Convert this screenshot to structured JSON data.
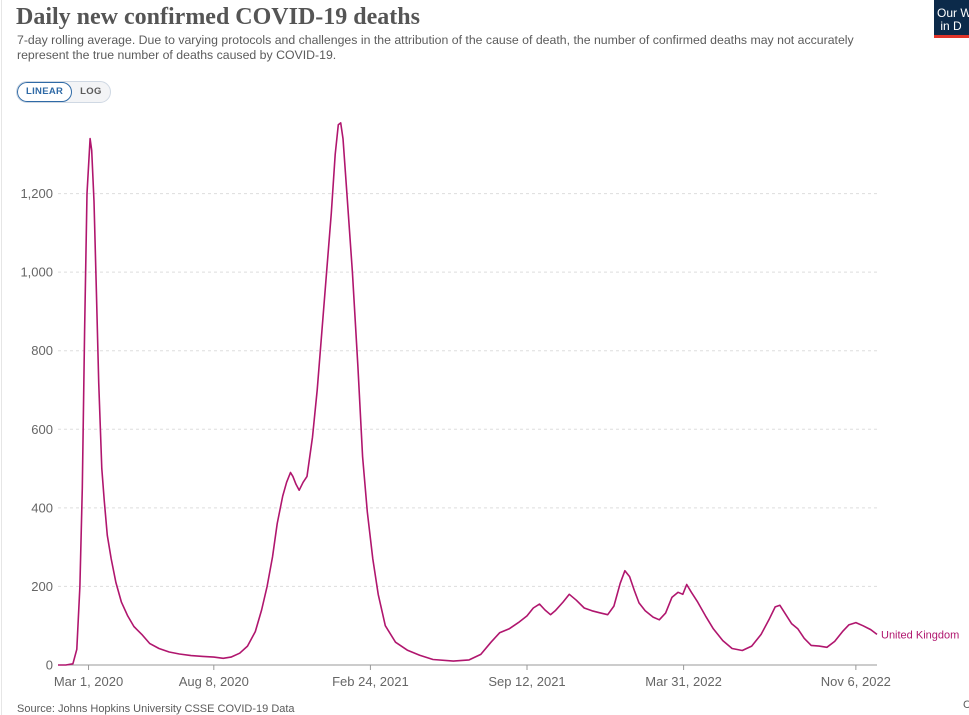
{
  "header": {
    "title": "Daily new confirmed COVID-19 deaths",
    "subtitle": "7-day rolling average. Due to varying protocols and challenges in the attribution of the cause of death, the number of confirmed deaths may not accurately represent the true number of deaths caused by COVID-19."
  },
  "controls": {
    "linear_label": "LINEAR",
    "log_label": "LOG",
    "selected": "LINEAR"
  },
  "logo": {
    "text": "Our W\n in D"
  },
  "footer": {
    "source": "Source: Johns Hopkins University CSSE COVID-19 Data",
    "right_fragment": "C"
  },
  "chart_data": {
    "type": "line",
    "title": "Daily new confirmed COVID-19 deaths",
    "xlabel": "",
    "ylabel": "",
    "x_axis": "date",
    "ylim": [
      0,
      1400
    ],
    "y_ticks": [
      0,
      200,
      400,
      600,
      800,
      1000,
      1200
    ],
    "y_tick_labels": [
      "0",
      "200",
      "400",
      "600",
      "800",
      "1,000",
      "1,200"
    ],
    "x_ticks": [
      "2020-03-01",
      "2020-08-08",
      "2021-02-24",
      "2021-09-12",
      "2022-03-31",
      "2022-11-06"
    ],
    "x_tick_labels": [
      "Mar 1, 2020",
      "Aug 8, 2020",
      "Feb 24, 2021",
      "Sep 12, 2021",
      "Mar 31, 2022",
      "Nov 6, 2022"
    ],
    "grid": "horizontal dashed",
    "legend": "inline label at line end",
    "series": [
      {
        "name": "United Kingdom",
        "color": "#b0166e",
        "points": [
          [
            "2020-01-22",
            0
          ],
          [
            "2020-02-01",
            0
          ],
          [
            "2020-02-10",
            3
          ],
          [
            "2020-02-15",
            40
          ],
          [
            "2020-02-19",
            200
          ],
          [
            "2020-02-22",
            450
          ],
          [
            "2020-02-25",
            850
          ],
          [
            "2020-02-28",
            1200
          ],
          [
            "2020-03-03",
            1340
          ],
          [
            "2020-03-05",
            1310
          ],
          [
            "2020-03-08",
            1180
          ],
          [
            "2020-03-11",
            950
          ],
          [
            "2020-03-14",
            720
          ],
          [
            "2020-03-18",
            500
          ],
          [
            "2020-03-21",
            420
          ],
          [
            "2020-03-25",
            330
          ],
          [
            "2020-03-30",
            270
          ],
          [
            "2020-04-05",
            210
          ],
          [
            "2020-04-12",
            160
          ],
          [
            "2020-04-20",
            125
          ],
          [
            "2020-04-28",
            98
          ],
          [
            "2020-05-01",
            92
          ],
          [
            "2020-05-08",
            78
          ],
          [
            "2020-05-18",
            55
          ],
          [
            "2020-05-30",
            42
          ],
          [
            "2020-06-12",
            33
          ],
          [
            "2020-06-25",
            28
          ],
          [
            "2020-07-10",
            24
          ],
          [
            "2020-07-25",
            22
          ],
          [
            "2020-08-08",
            20
          ],
          [
            "2020-08-20",
            17
          ],
          [
            "2020-08-30",
            20
          ],
          [
            "2020-09-10",
            30
          ],
          [
            "2020-09-20",
            48
          ],
          [
            "2020-09-30",
            85
          ],
          [
            "2020-10-08",
            140
          ],
          [
            "2020-10-15",
            200
          ],
          [
            "2020-10-22",
            275
          ],
          [
            "2020-10-28",
            360
          ],
          [
            "2020-11-04",
            430
          ],
          [
            "2020-11-09",
            465
          ],
          [
            "2020-11-14",
            490
          ],
          [
            "2020-11-17",
            480
          ],
          [
            "2020-11-21",
            460
          ],
          [
            "2020-11-25",
            445
          ],
          [
            "2020-11-30",
            465
          ],
          [
            "2020-12-05",
            480
          ],
          [
            "2020-12-12",
            580
          ],
          [
            "2020-12-18",
            700
          ],
          [
            "2020-12-24",
            850
          ],
          [
            "2020-12-30",
            1000
          ],
          [
            "2021-01-05",
            1150
          ],
          [
            "2021-01-10",
            1300
          ],
          [
            "2021-01-14",
            1375
          ],
          [
            "2021-01-17",
            1380
          ],
          [
            "2021-01-20",
            1340
          ],
          [
            "2021-01-25",
            1200
          ],
          [
            "2021-02-01",
            1000
          ],
          [
            "2021-02-08",
            760
          ],
          [
            "2021-02-14",
            530
          ],
          [
            "2021-02-20",
            390
          ],
          [
            "2021-02-27",
            270
          ],
          [
            "2021-03-06",
            180
          ],
          [
            "2021-03-15",
            100
          ],
          [
            "2021-03-28",
            58
          ],
          [
            "2021-04-12",
            38
          ],
          [
            "2021-04-28",
            25
          ],
          [
            "2021-05-15",
            14
          ],
          [
            "2021-06-10",
            10
          ],
          [
            "2021-06-30",
            13
          ],
          [
            "2021-07-15",
            27
          ],
          [
            "2021-07-28",
            58
          ],
          [
            "2021-08-08",
            82
          ],
          [
            "2021-08-20",
            92
          ],
          [
            "2021-09-01",
            108
          ],
          [
            "2021-09-12",
            125
          ],
          [
            "2021-09-20",
            145
          ],
          [
            "2021-09-28",
            155
          ],
          [
            "2021-10-05",
            140
          ],
          [
            "2021-10-12",
            128
          ],
          [
            "2021-10-18",
            138
          ],
          [
            "2021-10-28",
            160
          ],
          [
            "2021-11-05",
            180
          ],
          [
            "2021-11-14",
            165
          ],
          [
            "2021-11-24",
            145
          ],
          [
            "2021-12-04",
            138
          ],
          [
            "2021-12-14",
            133
          ],
          [
            "2021-12-24",
            128
          ],
          [
            "2022-01-01",
            150
          ],
          [
            "2022-01-09",
            208
          ],
          [
            "2022-01-15",
            240
          ],
          [
            "2022-01-21",
            225
          ],
          [
            "2022-01-27",
            190
          ],
          [
            "2022-02-02",
            158
          ],
          [
            "2022-02-10",
            138
          ],
          [
            "2022-02-20",
            122
          ],
          [
            "2022-02-28",
            115
          ],
          [
            "2022-03-08",
            132
          ],
          [
            "2022-03-16",
            172
          ],
          [
            "2022-03-24",
            185
          ],
          [
            "2022-03-30",
            180
          ],
          [
            "2022-04-04",
            205
          ],
          [
            "2022-04-10",
            185
          ],
          [
            "2022-04-18",
            160
          ],
          [
            "2022-04-28",
            125
          ],
          [
            "2022-05-08",
            92
          ],
          [
            "2022-05-20",
            62
          ],
          [
            "2022-06-01",
            42
          ],
          [
            "2022-06-14",
            37
          ],
          [
            "2022-06-26",
            48
          ],
          [
            "2022-07-08",
            78
          ],
          [
            "2022-07-18",
            115
          ],
          [
            "2022-07-26",
            148
          ],
          [
            "2022-08-01",
            152
          ],
          [
            "2022-08-08",
            130
          ],
          [
            "2022-08-16",
            105
          ],
          [
            "2022-08-24",
            92
          ],
          [
            "2022-09-01",
            68
          ],
          [
            "2022-09-10",
            50
          ],
          [
            "2022-09-20",
            48
          ],
          [
            "2022-09-30",
            45
          ],
          [
            "2022-10-10",
            60
          ],
          [
            "2022-10-20",
            85
          ],
          [
            "2022-10-28",
            102
          ],
          [
            "2022-11-06",
            108
          ],
          [
            "2022-11-15",
            100
          ],
          [
            "2022-11-25",
            90
          ],
          [
            "2022-12-03",
            78
          ]
        ]
      }
    ]
  }
}
